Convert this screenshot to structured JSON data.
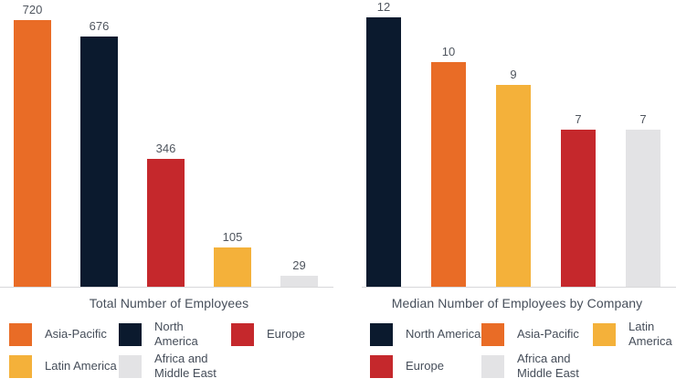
{
  "figure": {
    "background": "#FFFFFF",
    "text_color": "#474F5B",
    "axis_line_color": "#D8D8DA"
  },
  "colors": {
    "asia_pacific": "#E96C26",
    "north_america": "#0B1A2E",
    "europe": "#C5282C",
    "latin_america": "#F4B13A",
    "africa_middle_east": "#E3E3E5"
  },
  "chart_data": [
    {
      "type": "bar",
      "title": "Total Number of Employees",
      "categories": [
        "Asia-Pacific",
        "North America",
        "Europe",
        "Latin America",
        "Africa and Middle East"
      ],
      "values": [
        720,
        676,
        346,
        105,
        29
      ],
      "bar_colors": [
        "#E96C26",
        "#0B1A2E",
        "#C5282C",
        "#F4B13A",
        "#E3E3E5"
      ],
      "value_labels": [
        "720",
        "676",
        "346",
        "105",
        "29"
      ],
      "xlabel": "",
      "ylabel": "",
      "ylim": [
        0,
        740
      ],
      "grid": false,
      "axis_ticks": "none",
      "legend_position": "bottom",
      "legend": [
        {
          "label": "Asia-Pacific",
          "color": "#E96C26"
        },
        {
          "label": "North\nAmerica",
          "color": "#0B1A2E"
        },
        {
          "label": "Europe",
          "color": "#C5282C"
        },
        {
          "label": "Latin America",
          "color": "#F4B13A"
        },
        {
          "label": "Africa and\nMiddle East",
          "color": "#E3E3E5"
        }
      ]
    },
    {
      "type": "bar",
      "title": "Median Number of Employees by Company",
      "categories": [
        "North America",
        "Asia-Pacific",
        "Latin America",
        "Europe",
        "Africa and Middle East"
      ],
      "values": [
        12,
        10,
        9,
        7,
        7
      ],
      "bar_colors": [
        "#0B1A2E",
        "#E96C26",
        "#F4B13A",
        "#C5282C",
        "#E3E3E5"
      ],
      "value_labels": [
        "12",
        "10",
        "9",
        "7",
        "7"
      ],
      "xlabel": "",
      "ylabel": "",
      "ylim": [
        0,
        12.8
      ],
      "grid": false,
      "axis_ticks": "none",
      "legend_position": "bottom",
      "legend": [
        {
          "label": "North America",
          "color": "#0B1A2E"
        },
        {
          "label": "Asia-Pacific",
          "color": "#E96C26"
        },
        {
          "label": "Latin\nAmerica",
          "color": "#F4B13A"
        },
        {
          "label": "Europe",
          "color": "#C5282C"
        },
        {
          "label": "Africa and\nMiddle East",
          "color": "#E3E3E5"
        }
      ]
    }
  ]
}
